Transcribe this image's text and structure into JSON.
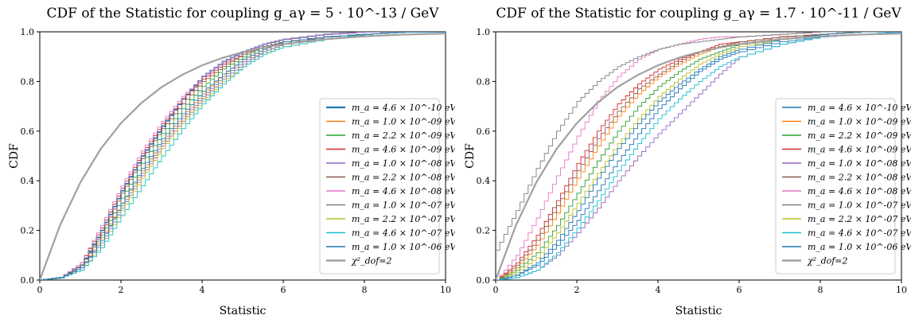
{
  "chart_data": [
    {
      "type": "line",
      "title": "CDF of the Statistic for coupling g_aγ = 5 · 10^-13 / GeV",
      "xlabel": "Statistic",
      "ylabel": "CDF",
      "xlim": [
        0,
        10
      ],
      "ylim": [
        0,
        1
      ],
      "xticks": [
        "0",
        "2",
        "4",
        "6",
        "8",
        "10"
      ],
      "yticks": [
        "0.0",
        "0.2",
        "0.4",
        "0.6",
        "0.8",
        "1.0"
      ],
      "grid": false,
      "legend_position": "lower-right",
      "series": [
        {
          "name": "m_a = 4.6 × 10^-10 eV",
          "color": "#1f77b4",
          "bold": true,
          "x": [
            0,
            0.5,
            1.0,
            1.5,
            2.0,
            2.5,
            3.0,
            3.5,
            4.0,
            4.5,
            5.0,
            5.5,
            6.0,
            7.0,
            8.0,
            9.0,
            10
          ],
          "y": [
            0,
            0.01,
            0.06,
            0.2,
            0.36,
            0.5,
            0.62,
            0.73,
            0.82,
            0.88,
            0.92,
            0.95,
            0.97,
            0.99,
            1.0,
            1.0,
            1.0
          ]
        },
        {
          "name": "m_a = 1.0 × 10^-09 eV",
          "color": "#ff7f0e",
          "x": [
            0,
            0.5,
            1.0,
            1.5,
            2.0,
            2.5,
            3.0,
            3.5,
            4.0,
            4.5,
            5.0,
            5.5,
            6.0,
            7.0,
            8.0,
            9.0,
            10
          ],
          "y": [
            0,
            0.01,
            0.05,
            0.17,
            0.31,
            0.44,
            0.56,
            0.66,
            0.75,
            0.83,
            0.89,
            0.93,
            0.96,
            0.98,
            0.99,
            1.0,
            1.0
          ]
        },
        {
          "name": "m_a = 2.2 × 10^-09 eV",
          "color": "#2ca02c",
          "x": [
            0,
            0.5,
            1.0,
            1.5,
            2.0,
            2.5,
            3.0,
            3.5,
            4.0,
            4.5,
            5.0,
            5.5,
            6.0,
            7.0,
            8.0,
            9.0,
            10
          ],
          "y": [
            0,
            0.01,
            0.06,
            0.18,
            0.33,
            0.47,
            0.59,
            0.69,
            0.78,
            0.85,
            0.9,
            0.94,
            0.96,
            0.98,
            0.99,
            1.0,
            1.0
          ]
        },
        {
          "name": "m_a = 4.6 × 10^-09 eV",
          "color": "#d62728",
          "x": [
            0,
            0.5,
            1.0,
            1.5,
            2.0,
            2.5,
            3.0,
            3.5,
            4.0,
            4.5,
            5.0,
            5.5,
            6.0,
            7.0,
            8.0,
            9.0,
            10
          ],
          "y": [
            0,
            0.01,
            0.07,
            0.21,
            0.37,
            0.51,
            0.63,
            0.73,
            0.81,
            0.87,
            0.91,
            0.94,
            0.96,
            0.98,
            0.99,
            1.0,
            1.0
          ]
        },
        {
          "name": "m_a = 1.0 × 10^-08 eV",
          "color": "#9467bd",
          "x": [
            0,
            0.5,
            1.0,
            1.5,
            2.0,
            2.5,
            3.0,
            3.5,
            4.0,
            4.5,
            5.0,
            5.5,
            6.0,
            7.0,
            8.0,
            9.0,
            10
          ],
          "y": [
            0,
            0.01,
            0.05,
            0.15,
            0.29,
            0.42,
            0.54,
            0.64,
            0.73,
            0.81,
            0.87,
            0.92,
            0.95,
            0.98,
            0.99,
            1.0,
            1.0
          ]
        },
        {
          "name": "m_a = 2.2 × 10^-08 eV",
          "color": "#8c564b",
          "x": [
            0,
            0.5,
            1.0,
            1.5,
            2.0,
            2.5,
            3.0,
            3.5,
            4.0,
            4.5,
            5.0,
            5.5,
            6.0,
            7.0,
            8.0,
            9.0,
            10
          ],
          "y": [
            0,
            0.01,
            0.06,
            0.19,
            0.35,
            0.49,
            0.61,
            0.71,
            0.8,
            0.86,
            0.91,
            0.94,
            0.96,
            0.98,
            0.99,
            1.0,
            1.0
          ]
        },
        {
          "name": "m_a = 4.6 × 10^-08 eV",
          "color": "#e377c2",
          "x": [
            0,
            0.5,
            1.0,
            1.5,
            2.0,
            2.5,
            3.0,
            3.5,
            4.0,
            4.5,
            5.0,
            5.5,
            6.0,
            7.0,
            8.0,
            9.0,
            10
          ],
          "y": [
            0,
            0.01,
            0.07,
            0.22,
            0.38,
            0.52,
            0.64,
            0.74,
            0.82,
            0.88,
            0.92,
            0.95,
            0.97,
            0.99,
            1.0,
            1.0,
            1.0
          ]
        },
        {
          "name": "m_a = 1.0 × 10^-07 eV",
          "color": "#7f7f7f",
          "x": [
            0,
            0.5,
            1.0,
            1.5,
            2.0,
            2.5,
            3.0,
            3.5,
            4.0,
            4.5,
            5.0,
            5.5,
            6.0,
            7.0,
            8.0,
            9.0,
            10
          ],
          "y": [
            0,
            0.01,
            0.05,
            0.16,
            0.3,
            0.43,
            0.55,
            0.65,
            0.74,
            0.82,
            0.88,
            0.92,
            0.95,
            0.98,
            0.99,
            1.0,
            1.0
          ]
        },
        {
          "name": "m_a = 2.2 × 10^-07 eV",
          "color": "#bcbd22",
          "x": [
            0,
            0.5,
            1.0,
            1.5,
            2.0,
            2.5,
            3.0,
            3.5,
            4.0,
            4.5,
            5.0,
            5.5,
            6.0,
            7.0,
            8.0,
            9.0,
            10
          ],
          "y": [
            0,
            0.01,
            0.04,
            0.14,
            0.28,
            0.41,
            0.53,
            0.63,
            0.72,
            0.8,
            0.86,
            0.91,
            0.94,
            0.97,
            0.99,
            1.0,
            1.0
          ]
        },
        {
          "name": "m_a = 4.6 × 10^-07 eV",
          "color": "#17becf",
          "x": [
            0,
            0.5,
            1.0,
            1.5,
            2.0,
            2.5,
            3.0,
            3.5,
            4.0,
            4.5,
            5.0,
            5.5,
            6.0,
            7.0,
            8.0,
            9.0,
            10
          ],
          "y": [
            0,
            0.01,
            0.04,
            0.13,
            0.26,
            0.38,
            0.5,
            0.61,
            0.71,
            0.79,
            0.86,
            0.91,
            0.94,
            0.97,
            0.99,
            1.0,
            1.0
          ]
        },
        {
          "name": "m_a = 1.0 × 10^-06 eV",
          "color": "#1f77b4",
          "x": [
            0,
            0.5,
            1.0,
            1.5,
            2.0,
            2.5,
            3.0,
            3.5,
            4.0,
            4.5,
            5.0,
            5.5,
            6.0,
            7.0,
            8.0,
            9.0,
            10
          ],
          "y": [
            0,
            0.01,
            0.05,
            0.16,
            0.31,
            0.45,
            0.57,
            0.67,
            0.76,
            0.83,
            0.89,
            0.93,
            0.96,
            0.98,
            0.99,
            1.0,
            1.0
          ]
        },
        {
          "name": "χ²_dof=2",
          "color": "#a0a0a0",
          "reference": true,
          "x": [
            0,
            0.5,
            1.0,
            1.5,
            2.0,
            2.5,
            3.0,
            3.5,
            4.0,
            4.5,
            5.0,
            5.5,
            6.0,
            7.0,
            8.0,
            9.0,
            10
          ],
          "y": [
            0,
            0.221,
            0.393,
            0.528,
            0.632,
            0.713,
            0.777,
            0.826,
            0.865,
            0.895,
            0.918,
            0.936,
            0.95,
            0.97,
            0.982,
            0.989,
            0.993
          ]
        }
      ]
    },
    {
      "type": "line",
      "title": "CDF of the Statistic for coupling g_aγ = 1.7 · 10^-11 / GeV",
      "xlabel": "Statistic",
      "ylabel": "CDF",
      "xlim": [
        0,
        10
      ],
      "ylim": [
        0,
        1
      ],
      "xticks": [
        "0",
        "2",
        "4",
        "6",
        "8",
        "10"
      ],
      "yticks": [
        "0.0",
        "0.2",
        "0.4",
        "0.6",
        "0.8",
        "1.0"
      ],
      "grid": false,
      "legend_position": "lower-right",
      "series": [
        {
          "name": "m_a = 4.6 × 10^-10 eV",
          "color": "#1f77b4",
          "x": [
            0,
            0.5,
            1.0,
            1.5,
            2.0,
            2.5,
            3.0,
            3.5,
            4.0,
            4.5,
            5.0,
            5.5,
            6.0,
            7.0,
            8.0,
            9.0,
            10
          ],
          "y": [
            0,
            0.02,
            0.06,
            0.14,
            0.24,
            0.36,
            0.48,
            0.59,
            0.69,
            0.77,
            0.84,
            0.89,
            0.92,
            0.96,
            0.98,
            0.99,
            1.0
          ]
        },
        {
          "name": "m_a = 1.0 × 10^-09 eV",
          "color": "#ff7f0e",
          "x": [
            0,
            0.5,
            1.0,
            1.5,
            2.0,
            2.5,
            3.0,
            3.5,
            4.0,
            4.5,
            5.0,
            5.5,
            6.0,
            7.0,
            8.0,
            9.0,
            10
          ],
          "y": [
            0,
            0.05,
            0.14,
            0.27,
            0.41,
            0.54,
            0.66,
            0.75,
            0.82,
            0.87,
            0.91,
            0.94,
            0.96,
            0.98,
            0.99,
            1.0,
            1.0
          ]
        },
        {
          "name": "m_a = 2.2 × 10^-09 eV",
          "color": "#2ca02c",
          "x": [
            0,
            0.5,
            1.0,
            1.5,
            2.0,
            2.5,
            3.0,
            3.5,
            4.0,
            4.5,
            5.0,
            5.5,
            6.0,
            7.0,
            8.0,
            9.0,
            10
          ],
          "y": [
            0,
            0.04,
            0.11,
            0.22,
            0.35,
            0.48,
            0.6,
            0.7,
            0.78,
            0.84,
            0.89,
            0.92,
            0.95,
            0.97,
            0.99,
            1.0,
            1.0
          ]
        },
        {
          "name": "m_a = 4.6 × 10^-09 eV",
          "color": "#d62728",
          "x": [
            0,
            0.5,
            1.0,
            1.5,
            2.0,
            2.5,
            3.0,
            3.5,
            4.0,
            4.5,
            5.0,
            5.5,
            6.0,
            7.0,
            8.0,
            9.0,
            10
          ],
          "y": [
            0,
            0.07,
            0.18,
            0.32,
            0.47,
            0.6,
            0.71,
            0.79,
            0.85,
            0.89,
            0.92,
            0.95,
            0.96,
            0.98,
            0.99,
            1.0,
            1.0
          ]
        },
        {
          "name": "m_a = 1.0 × 10^-08 eV",
          "color": "#9467bd",
          "x": [
            0,
            0.5,
            1.0,
            1.5,
            2.0,
            2.5,
            3.0,
            3.5,
            4.0,
            4.5,
            5.0,
            5.5,
            6.0,
            7.0,
            8.0,
            9.0,
            10
          ],
          "y": [
            0,
            0.01,
            0.04,
            0.1,
            0.19,
            0.29,
            0.4,
            0.5,
            0.59,
            0.67,
            0.75,
            0.83,
            0.9,
            0.95,
            0.98,
            0.99,
            1.0
          ]
        },
        {
          "name": "m_a = 2.2 × 10^-08 eV",
          "color": "#8c564b",
          "x": [
            0,
            0.5,
            1.0,
            1.5,
            2.0,
            2.5,
            3.0,
            3.5,
            4.0,
            4.5,
            5.0,
            5.5,
            6.0,
            7.0,
            8.0,
            9.0,
            10
          ],
          "y": [
            0,
            0.06,
            0.16,
            0.3,
            0.44,
            0.57,
            0.68,
            0.77,
            0.83,
            0.88,
            0.92,
            0.94,
            0.96,
            0.98,
            0.99,
            1.0,
            1.0
          ]
        },
        {
          "name": "m_a = 4.6 × 10^-08 eV",
          "color": "#e377c2",
          "x": [
            0,
            0.5,
            1.0,
            1.5,
            2.0,
            2.5,
            3.0,
            3.5,
            4.0,
            4.5,
            5.0,
            5.5,
            6.0,
            7.0,
            8.0,
            9.0,
            10
          ],
          "y": [
            0,
            0.1,
            0.25,
            0.42,
            0.58,
            0.72,
            0.82,
            0.89,
            0.93,
            0.95,
            0.97,
            0.98,
            0.98,
            0.99,
            1.0,
            1.0,
            1.0
          ]
        },
        {
          "name": "m_a = 1.0 × 10^-07 eV",
          "color": "#7f7f7f",
          "x": [
            0,
            0.5,
            1.0,
            1.5,
            2.0,
            2.5,
            3.0,
            3.5,
            4.0,
            4.5,
            5.0,
            5.5,
            6.0,
            7.0,
            8.0,
            9.0,
            10
          ],
          "y": [
            0.12,
            0.28,
            0.45,
            0.6,
            0.72,
            0.8,
            0.86,
            0.9,
            0.93,
            0.95,
            0.96,
            0.97,
            0.98,
            0.99,
            1.0,
            1.0,
            1.0
          ]
        },
        {
          "name": "m_a = 2.2 × 10^-07 eV",
          "color": "#bcbd22",
          "x": [
            0,
            0.5,
            1.0,
            1.5,
            2.0,
            2.5,
            3.0,
            3.5,
            4.0,
            4.5,
            5.0,
            5.5,
            6.0,
            7.0,
            8.0,
            9.0,
            10
          ],
          "y": [
            0,
            0.03,
            0.09,
            0.19,
            0.31,
            0.43,
            0.55,
            0.65,
            0.74,
            0.81,
            0.87,
            0.91,
            0.94,
            0.97,
            0.99,
            1.0,
            1.0
          ]
        },
        {
          "name": "m_a = 4.6 × 10^-07 eV",
          "color": "#17becf",
          "x": [
            0,
            0.5,
            1.0,
            1.5,
            2.0,
            2.5,
            3.0,
            3.5,
            4.0,
            4.5,
            5.0,
            5.5,
            6.0,
            7.0,
            8.0,
            9.0,
            10
          ],
          "y": [
            0,
            0.01,
            0.04,
            0.11,
            0.21,
            0.32,
            0.44,
            0.55,
            0.65,
            0.73,
            0.8,
            0.86,
            0.9,
            0.95,
            0.98,
            0.99,
            1.0
          ]
        },
        {
          "name": "m_a = 1.0 × 10^-06 eV",
          "color": "#1f77b4",
          "x": [
            0,
            0.5,
            1.0,
            1.5,
            2.0,
            2.5,
            3.0,
            3.5,
            4.0,
            4.5,
            5.0,
            5.5,
            6.0,
            7.0,
            8.0,
            9.0,
            10
          ],
          "y": [
            0,
            0.02,
            0.07,
            0.16,
            0.28,
            0.41,
            0.53,
            0.63,
            0.72,
            0.79,
            0.85,
            0.9,
            0.93,
            0.97,
            0.99,
            1.0,
            1.0
          ]
        },
        {
          "name": "χ²_dof=2",
          "color": "#a0a0a0",
          "reference": true,
          "x": [
            0,
            0.5,
            1.0,
            1.5,
            2.0,
            2.5,
            3.0,
            3.5,
            4.0,
            4.5,
            5.0,
            5.5,
            6.0,
            7.0,
            8.0,
            9.0,
            10
          ],
          "y": [
            0,
            0.221,
            0.393,
            0.528,
            0.632,
            0.713,
            0.777,
            0.826,
            0.865,
            0.895,
            0.918,
            0.936,
            0.95,
            0.97,
            0.982,
            0.989,
            0.993
          ]
        }
      ]
    }
  ]
}
